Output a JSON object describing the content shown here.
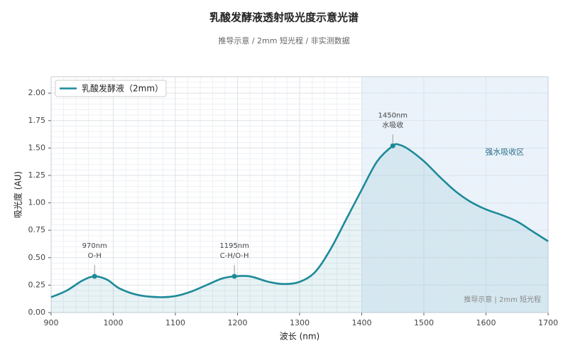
{
  "chart_data": {
    "type": "line",
    "title": "乳酸发酵液透射吸光度示意光谱",
    "subtitle": "推导示意 / 2mm 短光程 / 非实测数据",
    "x_label": "波长 (nm)",
    "y_label": "吸光度 (AU)",
    "x": [
      900,
      925,
      950,
      970,
      990,
      1010,
      1040,
      1075,
      1100,
      1125,
      1150,
      1175,
      1195,
      1220,
      1250,
      1275,
      1300,
      1325,
      1350,
      1375,
      1400,
      1425,
      1450,
      1460,
      1475,
      1500,
      1525,
      1550,
      1575,
      1600,
      1625,
      1650,
      1675,
      1700
    ],
    "series": [
      {
        "name": "乳酸发酵液（2mm）",
        "color": "#1d8a99",
        "values": [
          0.14,
          0.2,
          0.29,
          0.33,
          0.3,
          0.22,
          0.16,
          0.14,
          0.15,
          0.19,
          0.25,
          0.31,
          0.33,
          0.33,
          0.28,
          0.26,
          0.28,
          0.37,
          0.58,
          0.85,
          1.12,
          1.38,
          1.52,
          1.53,
          1.49,
          1.38,
          1.24,
          1.11,
          1.01,
          0.94,
          0.89,
          0.83,
          0.74,
          0.65
        ]
      }
    ],
    "xlim": [
      900,
      1700
    ],
    "ylim": [
      0,
      2.15
    ],
    "xticks": [
      900,
      1000,
      1100,
      1200,
      1300,
      1400,
      1500,
      1600,
      1700
    ],
    "yticks": [
      {
        "value": 0,
        "label": "0.00"
      },
      {
        "value": 0.25,
        "label": "0.25"
      },
      {
        "value": 0.5,
        "label": "0.50"
      },
      {
        "value": 0.75,
        "label": "0.75"
      },
      {
        "value": 1,
        "label": "1.00"
      },
      {
        "value": 1.25,
        "label": "1.25"
      },
      {
        "value": 1.5,
        "label": "1.50"
      },
      {
        "value": 1.75,
        "label": "1.75"
      },
      {
        "value": 2,
        "label": "2.00"
      }
    ],
    "xminor": [
      920,
      940,
      960,
      980,
      1020,
      1040,
      1060,
      1080,
      1120,
      1140,
      1160,
      1180,
      1220,
      1240,
      1260,
      1280,
      1320,
      1340,
      1360,
      1380,
      1420,
      1440,
      1460,
      1480,
      1520,
      1540,
      1560,
      1580,
      1620,
      1640,
      1660,
      1680
    ],
    "yminor": [
      0.05,
      0.1,
      0.15,
      0.2,
      0.3,
      0.35,
      0.4,
      0.45,
      0.55,
      0.6,
      0.65,
      0.7,
      0.8,
      0.85,
      0.9,
      0.95,
      1.05,
      1.1,
      1.15,
      1.2,
      1.3,
      1.35,
      1.4,
      1.45,
      1.55,
      1.6,
      1.65,
      1.7,
      1.8,
      1.85,
      1.9,
      1.95,
      2.05,
      2.1,
      2.15
    ],
    "grid": true,
    "legend": "upper left",
    "annotations": [
      {
        "x": 970,
        "y": 0.33,
        "label": [
          "970nm",
          "O-H"
        ]
      },
      {
        "x": 1195,
        "y": 0.33,
        "label": [
          "1195nm",
          "C-H/O-H"
        ]
      },
      {
        "x": 1450,
        "y": 1.52,
        "label": [
          "1450nm",
          "水吸收"
        ]
      }
    ],
    "region": {
      "xlim": [
        1400,
        1700
      ],
      "label": "强水吸收区",
      "color": "#d6e8f7"
    },
    "footnote": "推导示意 | 2mm 短光程"
  }
}
